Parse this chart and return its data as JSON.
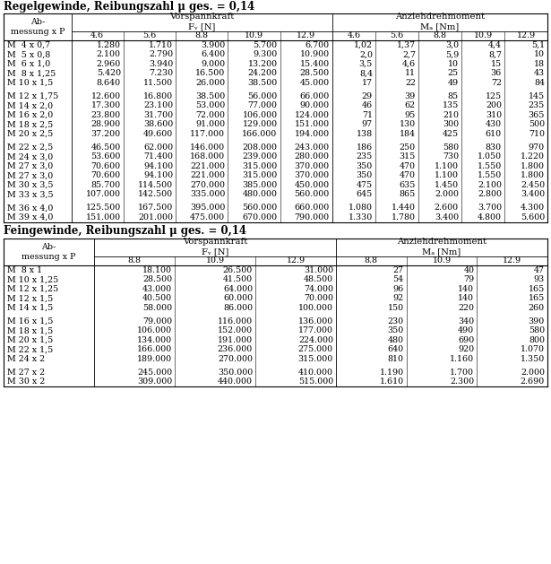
{
  "title1": "Regelgewinde, Reibungszahl μ ges. = 0,14",
  "title2": "Feingewinde, Reibungszahl μ ges. = 0,14",
  "table1_grades_vk": [
    "4.6",
    "5.6",
    "8.8",
    "10.9",
    "12.9"
  ],
  "table1_grades_az": [
    "4.6",
    "5.6",
    "8.8",
    "10.9",
    "12.9"
  ],
  "table1_rows": [
    [
      "M  4 x 0,7",
      "1.280",
      "1.710",
      "3.900",
      "5.700",
      "6.700",
      "1,02",
      "1,37",
      "3,0",
      "4,4",
      "5,1"
    ],
    [
      "M  5 x 0,8",
      "2.100",
      "2.790",
      "6.400",
      "9.300",
      "10.900",
      "2,0",
      "2,7",
      "5,9",
      "8,7",
      "10"
    ],
    [
      "M  6 x 1,0",
      "2.960",
      "3.940",
      "9.000",
      "13.200",
      "15.400",
      "3,5",
      "4,6",
      "10",
      "15",
      "18"
    ],
    [
      "M  8 x 1,25",
      "5.420",
      "7.230",
      "16.500",
      "24.200",
      "28.500",
      "8,4",
      "11",
      "25",
      "36",
      "43"
    ],
    [
      "M 10 x 1,5",
      "8.640",
      "11.500",
      "26.000",
      "38.500",
      "45.000",
      "17",
      "22",
      "49",
      "72",
      "84"
    ],
    [
      "M 12 x 1,75",
      "12.600",
      "16.800",
      "38.500",
      "56.000",
      "66.000",
      "29",
      "39",
      "85",
      "125",
      "145"
    ],
    [
      "M 14 x 2,0",
      "17.300",
      "23.100",
      "53.000",
      "77.000",
      "90.000",
      "46",
      "62",
      "135",
      "200",
      "235"
    ],
    [
      "M 16 x 2,0",
      "23.800",
      "31.700",
      "72.000",
      "106.000",
      "124.000",
      "71",
      "95",
      "210",
      "310",
      "365"
    ],
    [
      "M 18 x 2,5",
      "28.900",
      "38.600",
      "91.000",
      "129.000",
      "151.000",
      "97",
      "130",
      "300",
      "430",
      "500"
    ],
    [
      "M 20 x 2,5",
      "37.200",
      "49.600",
      "117.000",
      "166.000",
      "194.000",
      "138",
      "184",
      "425",
      "610",
      "710"
    ],
    [
      "M 22 x 2,5",
      "46.500",
      "62.000",
      "146.000",
      "208.000",
      "243.000",
      "186",
      "250",
      "580",
      "830",
      "970"
    ],
    [
      "M 24 x 3,0",
      "53.600",
      "71.400",
      "168.000",
      "239.000",
      "280.000",
      "235",
      "315",
      "730",
      "1.050",
      "1.220"
    ],
    [
      "M 27 x 3,0",
      "70.600",
      "94.100",
      "221.000",
      "315.000",
      "370.000",
      "350",
      "470",
      "1.100",
      "1.550",
      "1.800"
    ],
    [
      "M 27 x 3,0",
      "70.600",
      "94.100",
      "221.000",
      "315.000",
      "370.000",
      "350",
      "470",
      "1.100",
      "1.550",
      "1.800"
    ],
    [
      "M 30 x 3,5",
      "85.700",
      "114.500",
      "270.000",
      "385.000",
      "450.000",
      "475",
      "635",
      "1.450",
      "2.100",
      "2.450"
    ],
    [
      "M 33 x 3,5",
      "107.000",
      "142.500",
      "335.000",
      "480.000",
      "560.000",
      "645",
      "865",
      "2.000",
      "2.800",
      "3.400"
    ],
    [
      "M 36 x 4,0",
      "125.500",
      "167.500",
      "395.000",
      "560.000",
      "660.000",
      "1.080",
      "1.440",
      "2.600",
      "3.700",
      "4.300"
    ],
    [
      "M 39 x 4,0",
      "151.000",
      "201.000",
      "475.000",
      "670.000",
      "790.000",
      "1.330",
      "1.780",
      "3.400",
      "4.800",
      "5.600"
    ]
  ],
  "table1_groups": [
    5,
    5,
    6,
    2
  ],
  "table2_grades_vk": [
    "8.8",
    "10.9",
    "12.9"
  ],
  "table2_grades_az": [
    "8.8",
    "10.9",
    "12.9"
  ],
  "table2_rows": [
    [
      "M  8 x 1",
      "18.100",
      "26.500",
      "31.000",
      "27",
      "40",
      "47"
    ],
    [
      "M 10 x 1,25",
      "28.500",
      "41.500",
      "48.500",
      "54",
      "79",
      "93"
    ],
    [
      "M 12 x 1,25",
      "43.000",
      "64.000",
      "74.000",
      "96",
      "140",
      "165"
    ],
    [
      "M 12 x 1,5",
      "40.500",
      "60.000",
      "70.000",
      "92",
      "140",
      "165"
    ],
    [
      "M 14 x 1,5",
      "58.000",
      "86.000",
      "100.000",
      "150",
      "220",
      "260"
    ],
    [
      "M 16 x 1,5",
      "79.000",
      "116.000",
      "136.000",
      "230",
      "340",
      "390"
    ],
    [
      "M 18 x 1,5",
      "106.000",
      "152.000",
      "177.000",
      "350",
      "490",
      "580"
    ],
    [
      "M 20 x 1,5",
      "134.000",
      "191.000",
      "224.000",
      "480",
      "690",
      "800"
    ],
    [
      "M 22 x 1,5",
      "166.000",
      "236.000",
      "275.000",
      "640",
      "920",
      "1.070"
    ],
    [
      "M 24 x 2",
      "189.000",
      "270.000",
      "315.000",
      "810",
      "1.160",
      "1.350"
    ],
    [
      "M 27 x 2",
      "245.000",
      "350.000",
      "410.000",
      "1.190",
      "1.700",
      "2.000"
    ],
    [
      "M 30 x 2",
      "309.000",
      "440.000",
      "515.000",
      "1.610",
      "2.300",
      "2.690"
    ]
  ],
  "table2_groups": [
    5,
    5,
    2
  ],
  "bg_color": "#ffffff",
  "line_color": "#000000",
  "text_color": "#000000",
  "font_size": 6.8,
  "header_font_size": 7.2,
  "title_font_size": 8.5
}
